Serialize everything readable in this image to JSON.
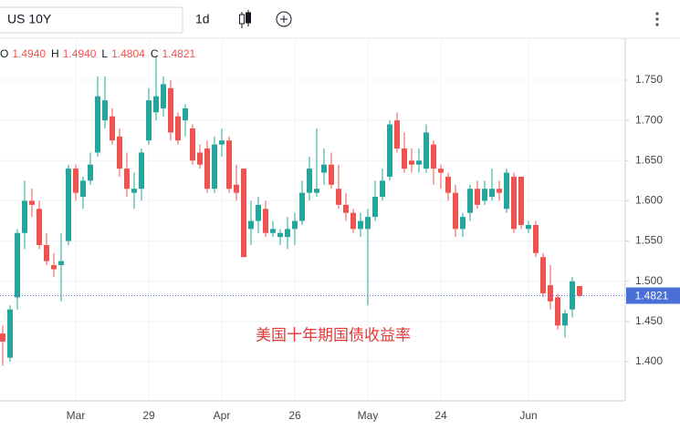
{
  "header": {
    "symbol": "US 10Y",
    "interval": "1d",
    "ohlc": [
      {
        "key": "O",
        "text": "1.4940"
      },
      {
        "key": "H",
        "text": "1.4940"
      },
      {
        "key": "L",
        "text": "1.4804"
      },
      {
        "key": "C",
        "text": "1.4821"
      }
    ]
  },
  "chart_data": {
    "type": "candlestick",
    "annotation": "美国十年期国债收益率",
    "categories": [
      null,
      null,
      null,
      null,
      null,
      null,
      null,
      null,
      null,
      null,
      "Mar",
      null,
      null,
      null,
      null,
      null,
      null,
      null,
      null,
      null,
      "29",
      null,
      null,
      null,
      null,
      null,
      null,
      null,
      null,
      null,
      "Apr",
      null,
      null,
      null,
      null,
      null,
      null,
      null,
      null,
      null,
      "26",
      null,
      null,
      null,
      null,
      null,
      null,
      null,
      null,
      null,
      "May",
      null,
      null,
      null,
      null,
      null,
      null,
      null,
      null,
      null,
      "24",
      null,
      null,
      null,
      null,
      null,
      null,
      null,
      null,
      null,
      null,
      null,
      "Jun",
      null,
      null,
      null,
      null,
      null,
      null,
      null
    ],
    "open": [
      1.435,
      1.405,
      1.48,
      1.56,
      1.6,
      1.59,
      1.545,
      1.52,
      1.52,
      1.55,
      1.64,
      1.605,
      1.625,
      1.66,
      1.7,
      1.705,
      1.68,
      1.64,
      1.61,
      1.615,
      1.675,
      1.71,
      1.715,
      1.74,
      1.705,
      1.7,
      1.69,
      1.66,
      1.665,
      1.615,
      1.67,
      1.675,
      1.62,
      1.64,
      1.565,
      1.575,
      1.59,
      1.56,
      1.555,
      1.555,
      1.565,
      1.575,
      1.61,
      1.61,
      1.635,
      1.645,
      1.615,
      1.595,
      1.585,
      1.565,
      1.565,
      1.58,
      1.605,
      1.63,
      1.7,
      1.665,
      1.65,
      1.645,
      1.64,
      1.67,
      1.64,
      1.63,
      1.61,
      1.565,
      1.585,
      1.615,
      1.6,
      1.605,
      1.615,
      1.59,
      1.63,
      1.63,
      1.565,
      1.57,
      1.53,
      1.495,
      1.48,
      1.445,
      1.465,
      1.494
    ],
    "high": [
      1.445,
      1.47,
      1.565,
      1.625,
      1.615,
      1.6,
      1.56,
      1.535,
      1.56,
      1.645,
      1.645,
      1.63,
      1.66,
      1.755,
      1.755,
      1.715,
      1.69,
      1.66,
      1.635,
      1.665,
      1.74,
      1.78,
      1.755,
      1.75,
      1.71,
      1.72,
      1.695,
      1.67,
      1.675,
      1.68,
      1.69,
      1.68,
      1.645,
      1.64,
      1.6,
      1.605,
      1.6,
      1.575,
      1.565,
      1.58,
      1.585,
      1.625,
      1.655,
      1.69,
      1.665,
      1.66,
      1.645,
      1.61,
      1.59,
      1.585,
      1.59,
      1.625,
      1.64,
      1.7,
      1.71,
      1.685,
      1.665,
      1.665,
      1.695,
      1.675,
      1.645,
      1.635,
      1.62,
      1.585,
      1.62,
      1.625,
      1.625,
      1.64,
      1.625,
      1.64,
      1.635,
      1.63,
      1.575,
      1.575,
      1.535,
      1.52,
      1.485,
      1.465,
      1.505,
      1.494
    ],
    "low": [
      1.395,
      1.4,
      1.465,
      1.54,
      1.58,
      1.54,
      1.52,
      1.505,
      1.475,
      1.545,
      1.6,
      1.59,
      1.62,
      1.655,
      1.69,
      1.67,
      1.63,
      1.605,
      1.59,
      1.6,
      1.67,
      1.7,
      1.705,
      1.675,
      1.67,
      1.68,
      1.645,
      1.64,
      1.61,
      1.61,
      1.655,
      1.61,
      1.6,
      1.53,
      1.545,
      1.56,
      1.555,
      1.555,
      1.545,
      1.54,
      1.545,
      1.57,
      1.6,
      1.605,
      1.62,
      1.615,
      1.59,
      1.575,
      1.56,
      1.555,
      1.47,
      1.575,
      1.6,
      1.625,
      1.66,
      1.635,
      1.635,
      1.635,
      1.635,
      1.62,
      1.615,
      1.6,
      1.555,
      1.555,
      1.575,
      1.59,
      1.595,
      1.6,
      1.6,
      1.585,
      1.56,
      1.565,
      1.56,
      1.53,
      1.48,
      1.465,
      1.44,
      1.43,
      1.455,
      1.4804
    ],
    "close": [
      1.425,
      1.465,
      1.56,
      1.6,
      1.595,
      1.545,
      1.525,
      1.515,
      1.525,
      1.64,
      1.61,
      1.625,
      1.645,
      1.73,
      1.725,
      1.675,
      1.64,
      1.615,
      1.615,
      1.66,
      1.725,
      1.73,
      1.745,
      1.685,
      1.675,
      1.715,
      1.65,
      1.645,
      1.615,
      1.67,
      1.675,
      1.615,
      1.61,
      1.53,
      1.575,
      1.595,
      1.56,
      1.565,
      1.56,
      1.565,
      1.575,
      1.61,
      1.64,
      1.615,
      1.645,
      1.62,
      1.595,
      1.585,
      1.565,
      1.575,
      1.58,
      1.605,
      1.625,
      1.695,
      1.665,
      1.64,
      1.645,
      1.65,
      1.685,
      1.64,
      1.635,
      1.61,
      1.565,
      1.58,
      1.615,
      1.595,
      1.615,
      1.615,
      1.61,
      1.635,
      1.565,
      1.57,
      1.57,
      1.535,
      1.485,
      1.475,
      1.445,
      1.46,
      1.5,
      1.4821
    ],
    "up_color": "#26a69a",
    "down_color": "#ef5350",
    "last_price_color": "#4a6fd6",
    "ylim": [
      1.3513,
      1.8021
    ],
    "yticks": [
      {
        "value": 1.4,
        "label": "1.400"
      },
      {
        "value": 1.45,
        "label": "1.450"
      },
      {
        "value": 1.5,
        "label": "1.500"
      },
      {
        "value": 1.55,
        "label": "1.550"
      },
      {
        "value": 1.6,
        "label": "1.600"
      },
      {
        "value": 1.65,
        "label": "1.650"
      },
      {
        "value": 1.7,
        "label": "1.700"
      },
      {
        "value": 1.75,
        "label": "1.750"
      }
    ],
    "grid": true
  }
}
